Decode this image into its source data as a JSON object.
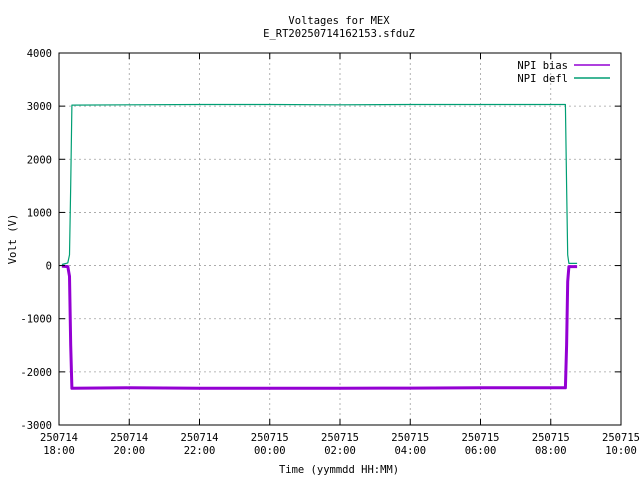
{
  "chart_data": {
    "type": "line",
    "title": "Voltages for MEX",
    "subtitle": "E_RT20250714162153.sfduZ",
    "xlabel": "Time (yymmdd HH:MM)",
    "ylabel": "Volt (V)",
    "xlim": [
      "2025-07-14 18:00",
      "2025-07-15 10:00"
    ],
    "ylim": [
      -3000,
      4000
    ],
    "grid": true,
    "legend_position": "top-right",
    "x_ticks": [
      {
        "date": "250714",
        "time": "18:00"
      },
      {
        "date": "250714",
        "time": "20:00"
      },
      {
        "date": "250714",
        "time": "22:00"
      },
      {
        "date": "250715",
        "time": "00:00"
      },
      {
        "date": "250715",
        "time": "02:00"
      },
      {
        "date": "250715",
        "time": "04:00"
      },
      {
        "date": "250715",
        "time": "06:00"
      },
      {
        "date": "250715",
        "time": "08:00"
      },
      {
        "date": "250715",
        "time": "10:00"
      }
    ],
    "y_ticks": [
      "-3000",
      "-2000",
      "-1000",
      "0",
      "1000",
      "2000",
      "3000",
      "4000"
    ],
    "series": [
      {
        "name": "NPI bias",
        "color": "#9400d3",
        "x": [
          "2025-07-14 18:05",
          "2025-07-14 18:15",
          "2025-07-14 18:18",
          "2025-07-14 18:20",
          "2025-07-14 18:22",
          "2025-07-14 20:00",
          "2025-07-14 22:00",
          "2025-07-15 00:00",
          "2025-07-15 02:00",
          "2025-07-15 04:00",
          "2025-07-15 06:00",
          "2025-07-15 08:00",
          "2025-07-15 08:25",
          "2025-07-15 08:27",
          "2025-07-15 08:29",
          "2025-07-15 08:31",
          "2025-07-15 08:45"
        ],
        "y": [
          -10,
          -20,
          -200,
          -1500,
          -2310,
          -2300,
          -2310,
          -2310,
          -2310,
          -2305,
          -2300,
          -2300,
          -2300,
          -1500,
          -300,
          -20,
          -20
        ]
      },
      {
        "name": "NPI defl",
        "color": "#009e73",
        "x": [
          "2025-07-14 18:05",
          "2025-07-14 18:15",
          "2025-07-14 18:18",
          "2025-07-14 18:20",
          "2025-07-14 18:22",
          "2025-07-14 20:00",
          "2025-07-14 22:00",
          "2025-07-15 00:00",
          "2025-07-15 02:00",
          "2025-07-15 04:00",
          "2025-07-15 06:00",
          "2025-07-15 08:00",
          "2025-07-15 08:25",
          "2025-07-15 08:27",
          "2025-07-15 08:29",
          "2025-07-15 08:31",
          "2025-07-15 08:45"
        ],
        "y": [
          20,
          50,
          200,
          1500,
          3020,
          3025,
          3030,
          3030,
          3025,
          3030,
          3030,
          3030,
          3030,
          1500,
          200,
          40,
          40
        ]
      }
    ]
  }
}
